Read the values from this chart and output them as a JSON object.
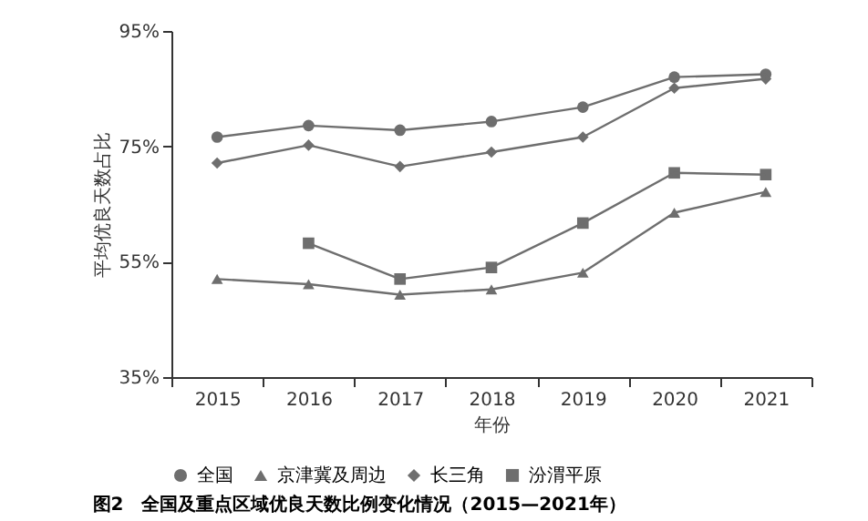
{
  "chart_data": {
    "type": "line",
    "title": "图2　全国及重点区域优良天数比例变化情况（2015—2021年）",
    "xlabel": "年份",
    "ylabel": "平均优良天数占比",
    "categories": [
      "2015",
      "2016",
      "2017",
      "2018",
      "2019",
      "2020",
      "2021"
    ],
    "series": [
      {
        "name": "全国",
        "color": "#6e6e6e",
        "marker": "circle",
        "values": [
          76.6,
          78.6,
          77.8,
          79.3,
          81.8,
          87.0,
          87.5
        ]
      },
      {
        "name": "京津冀及周边",
        "color": "#6e6e6e",
        "marker": "triangle",
        "values": [
          52.0,
          51.1,
          49.3,
          50.2,
          53.1,
          63.5,
          67.1
        ]
      },
      {
        "name": "长三角",
        "color": "#6e6e6e",
        "marker": "diamond",
        "values": [
          72.1,
          75.2,
          71.5,
          74.0,
          76.6,
          85.1,
          86.7
        ]
      },
      {
        "name": "汾渭平原",
        "color": "#6e6e6e",
        "marker": "square",
        "values": [
          null,
          58.2,
          52.0,
          54.0,
          61.7,
          70.4,
          70.1
        ]
      }
    ],
    "ylim": [
      35,
      95
    ],
    "yticks": [
      {
        "value": 35,
        "label": "35%"
      },
      {
        "value": 55,
        "label": "55%"
      },
      {
        "value": 75,
        "label": "75%"
      },
      {
        "value": 95,
        "label": "95%"
      }
    ],
    "grid": false,
    "legend": "bottom",
    "line_style": "solid"
  }
}
